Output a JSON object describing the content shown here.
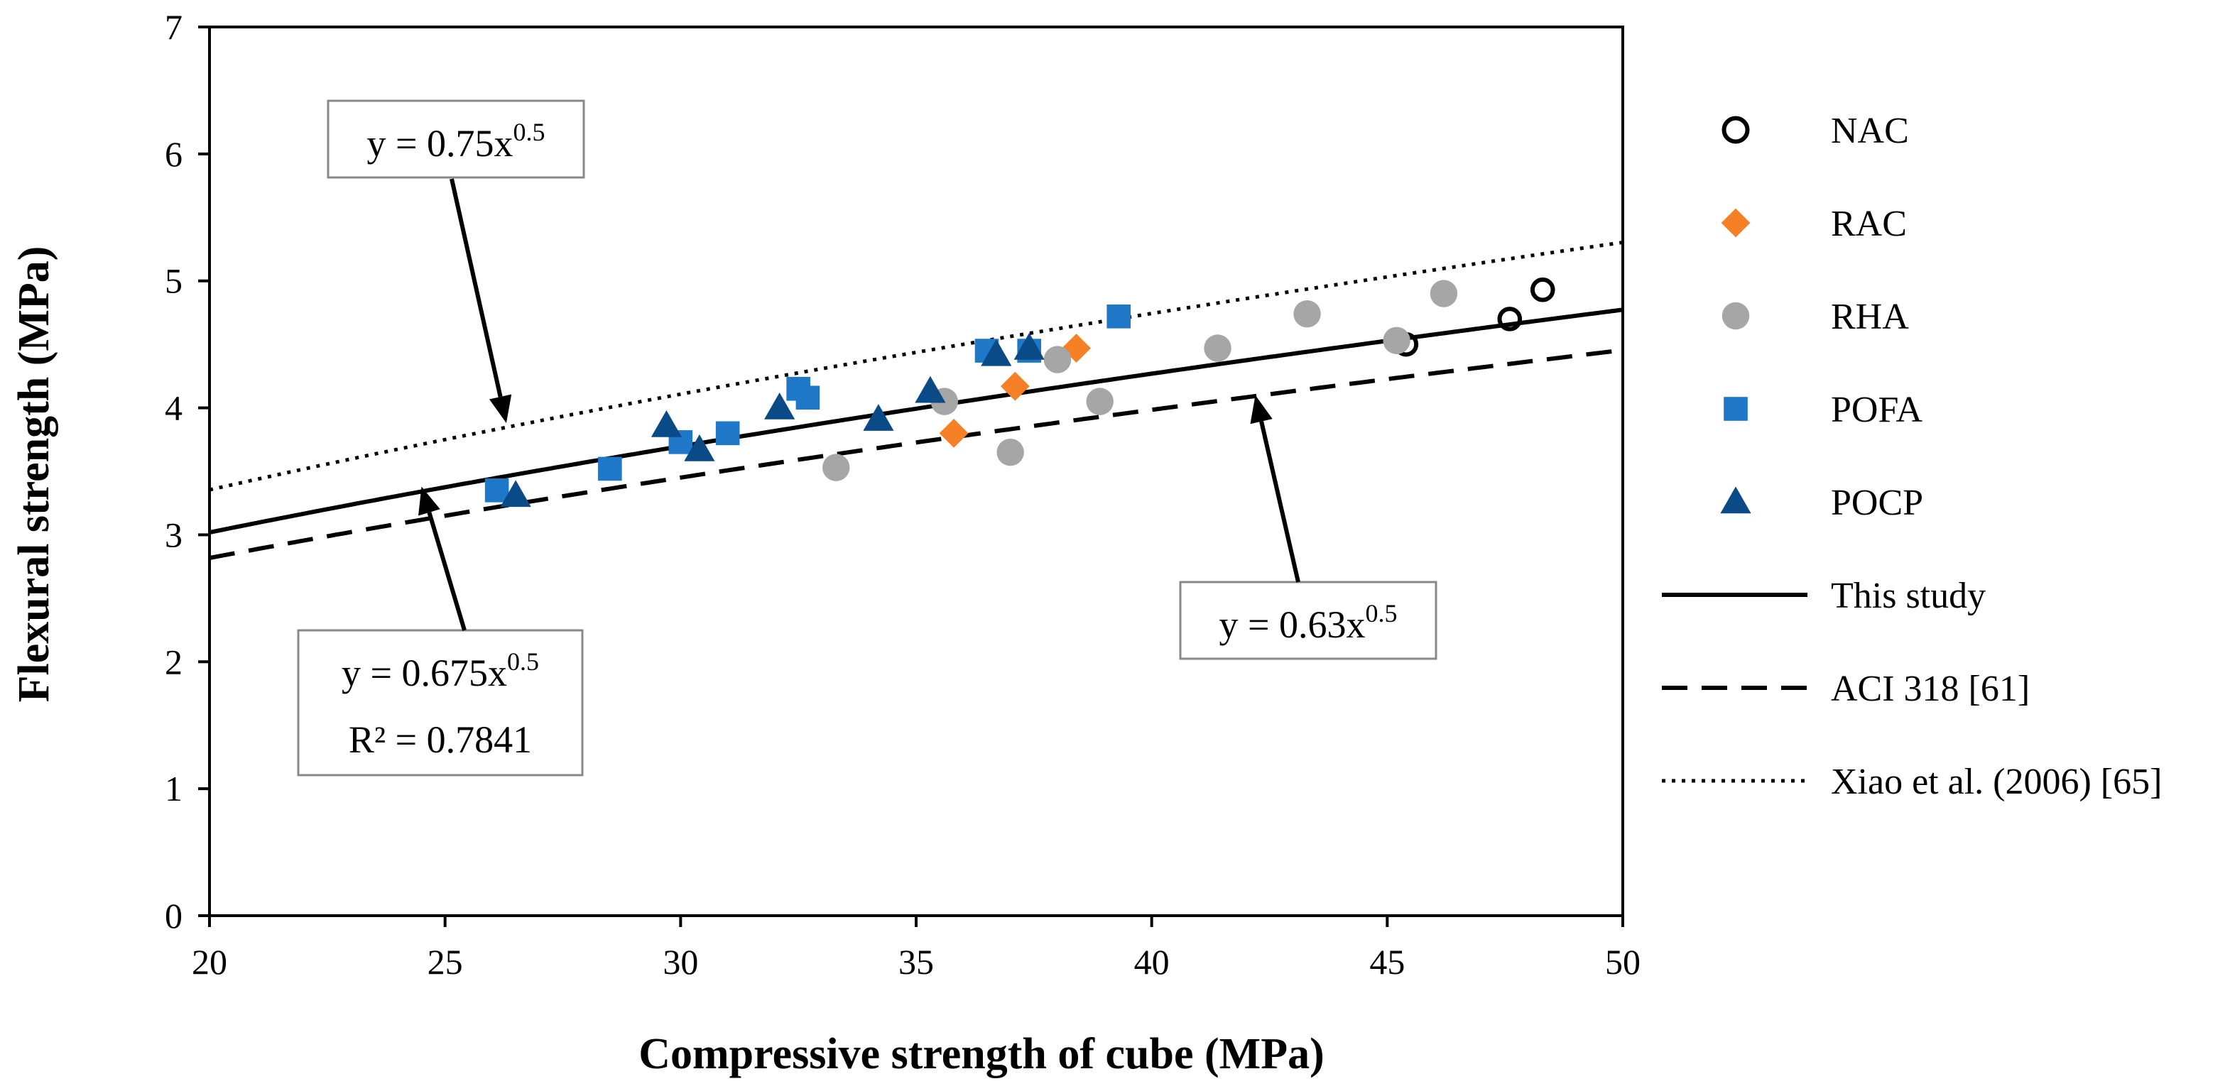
{
  "chart_data": {
    "type": "scatter",
    "xlabel": "Compressive strength of cube (MPa)",
    "ylabel": "Flexural strength (MPa)",
    "xlim": [
      20,
      50
    ],
    "ylim": [
      0,
      7
    ],
    "xticks": [
      20,
      25,
      30,
      35,
      40,
      45,
      50
    ],
    "yticks": [
      0,
      1,
      2,
      3,
      4,
      5,
      6,
      7
    ],
    "grid": false,
    "legend_position": "right",
    "series": [
      {
        "name": "NAC",
        "marker": "circle-open",
        "color": "#000000",
        "points": [
          [
            45.4,
            4.5
          ],
          [
            47.6,
            4.7
          ],
          [
            48.3,
            4.93
          ]
        ]
      },
      {
        "name": "RAC",
        "marker": "diamond",
        "color": "#F58025",
        "points": [
          [
            35.8,
            3.8
          ],
          [
            37.1,
            4.17
          ],
          [
            38.4,
            4.47
          ]
        ]
      },
      {
        "name": "RHA",
        "marker": "circle",
        "color": "#A6A6A6",
        "points": [
          [
            33.3,
            3.53
          ],
          [
            35.6,
            4.05
          ],
          [
            37.0,
            3.65
          ],
          [
            38.0,
            4.38
          ],
          [
            38.9,
            4.05
          ],
          [
            41.4,
            4.47
          ],
          [
            43.3,
            4.74
          ],
          [
            45.2,
            4.53
          ],
          [
            46.2,
            4.9
          ]
        ]
      },
      {
        "name": "POFA",
        "marker": "square",
        "color": "#1F77C8",
        "points": [
          [
            26.1,
            3.35
          ],
          [
            28.5,
            3.52
          ],
          [
            30.0,
            3.73
          ],
          [
            31.0,
            3.8
          ],
          [
            32.5,
            4.15
          ],
          [
            32.7,
            4.08
          ],
          [
            36.5,
            4.45
          ],
          [
            37.4,
            4.45
          ],
          [
            39.3,
            4.72
          ]
        ]
      },
      {
        "name": "POCP",
        "marker": "triangle",
        "color": "#0A4A86",
        "points": [
          [
            26.5,
            3.31
          ],
          [
            29.7,
            3.86
          ],
          [
            30.4,
            3.67
          ],
          [
            32.1,
            4.0
          ],
          [
            34.2,
            3.91
          ],
          [
            35.3,
            4.13
          ],
          [
            36.7,
            4.42
          ],
          [
            37.4,
            4.47
          ]
        ]
      }
    ],
    "curves": [
      {
        "name": "This study",
        "coef": 0.675,
        "exponent": 0.5,
        "style": "solid"
      },
      {
        "name": "ACI 318 [61]",
        "coef": 0.63,
        "exponent": 0.5,
        "style": "dashed"
      },
      {
        "name": "Xiao et al. (2006) [65]",
        "coef": 0.75,
        "exponent": 0.5,
        "style": "dotted"
      }
    ],
    "annotations": [
      {
        "name": "xiao",
        "prefix": "y = 0.75x",
        "sup": "0.5",
        "arrow_to": [
          26.3,
          3.88
        ]
      },
      {
        "name": "aci",
        "prefix": "y = 0.63x",
        "sup": "0.5",
        "arrow_to": [
          42.2,
          4.1
        ]
      },
      {
        "name": "study",
        "prefix": "y = 0.675x",
        "sup": "0.5",
        "line2": "R² = 0.7841",
        "arrow_to": [
          24.5,
          3.38
        ]
      }
    ]
  }
}
